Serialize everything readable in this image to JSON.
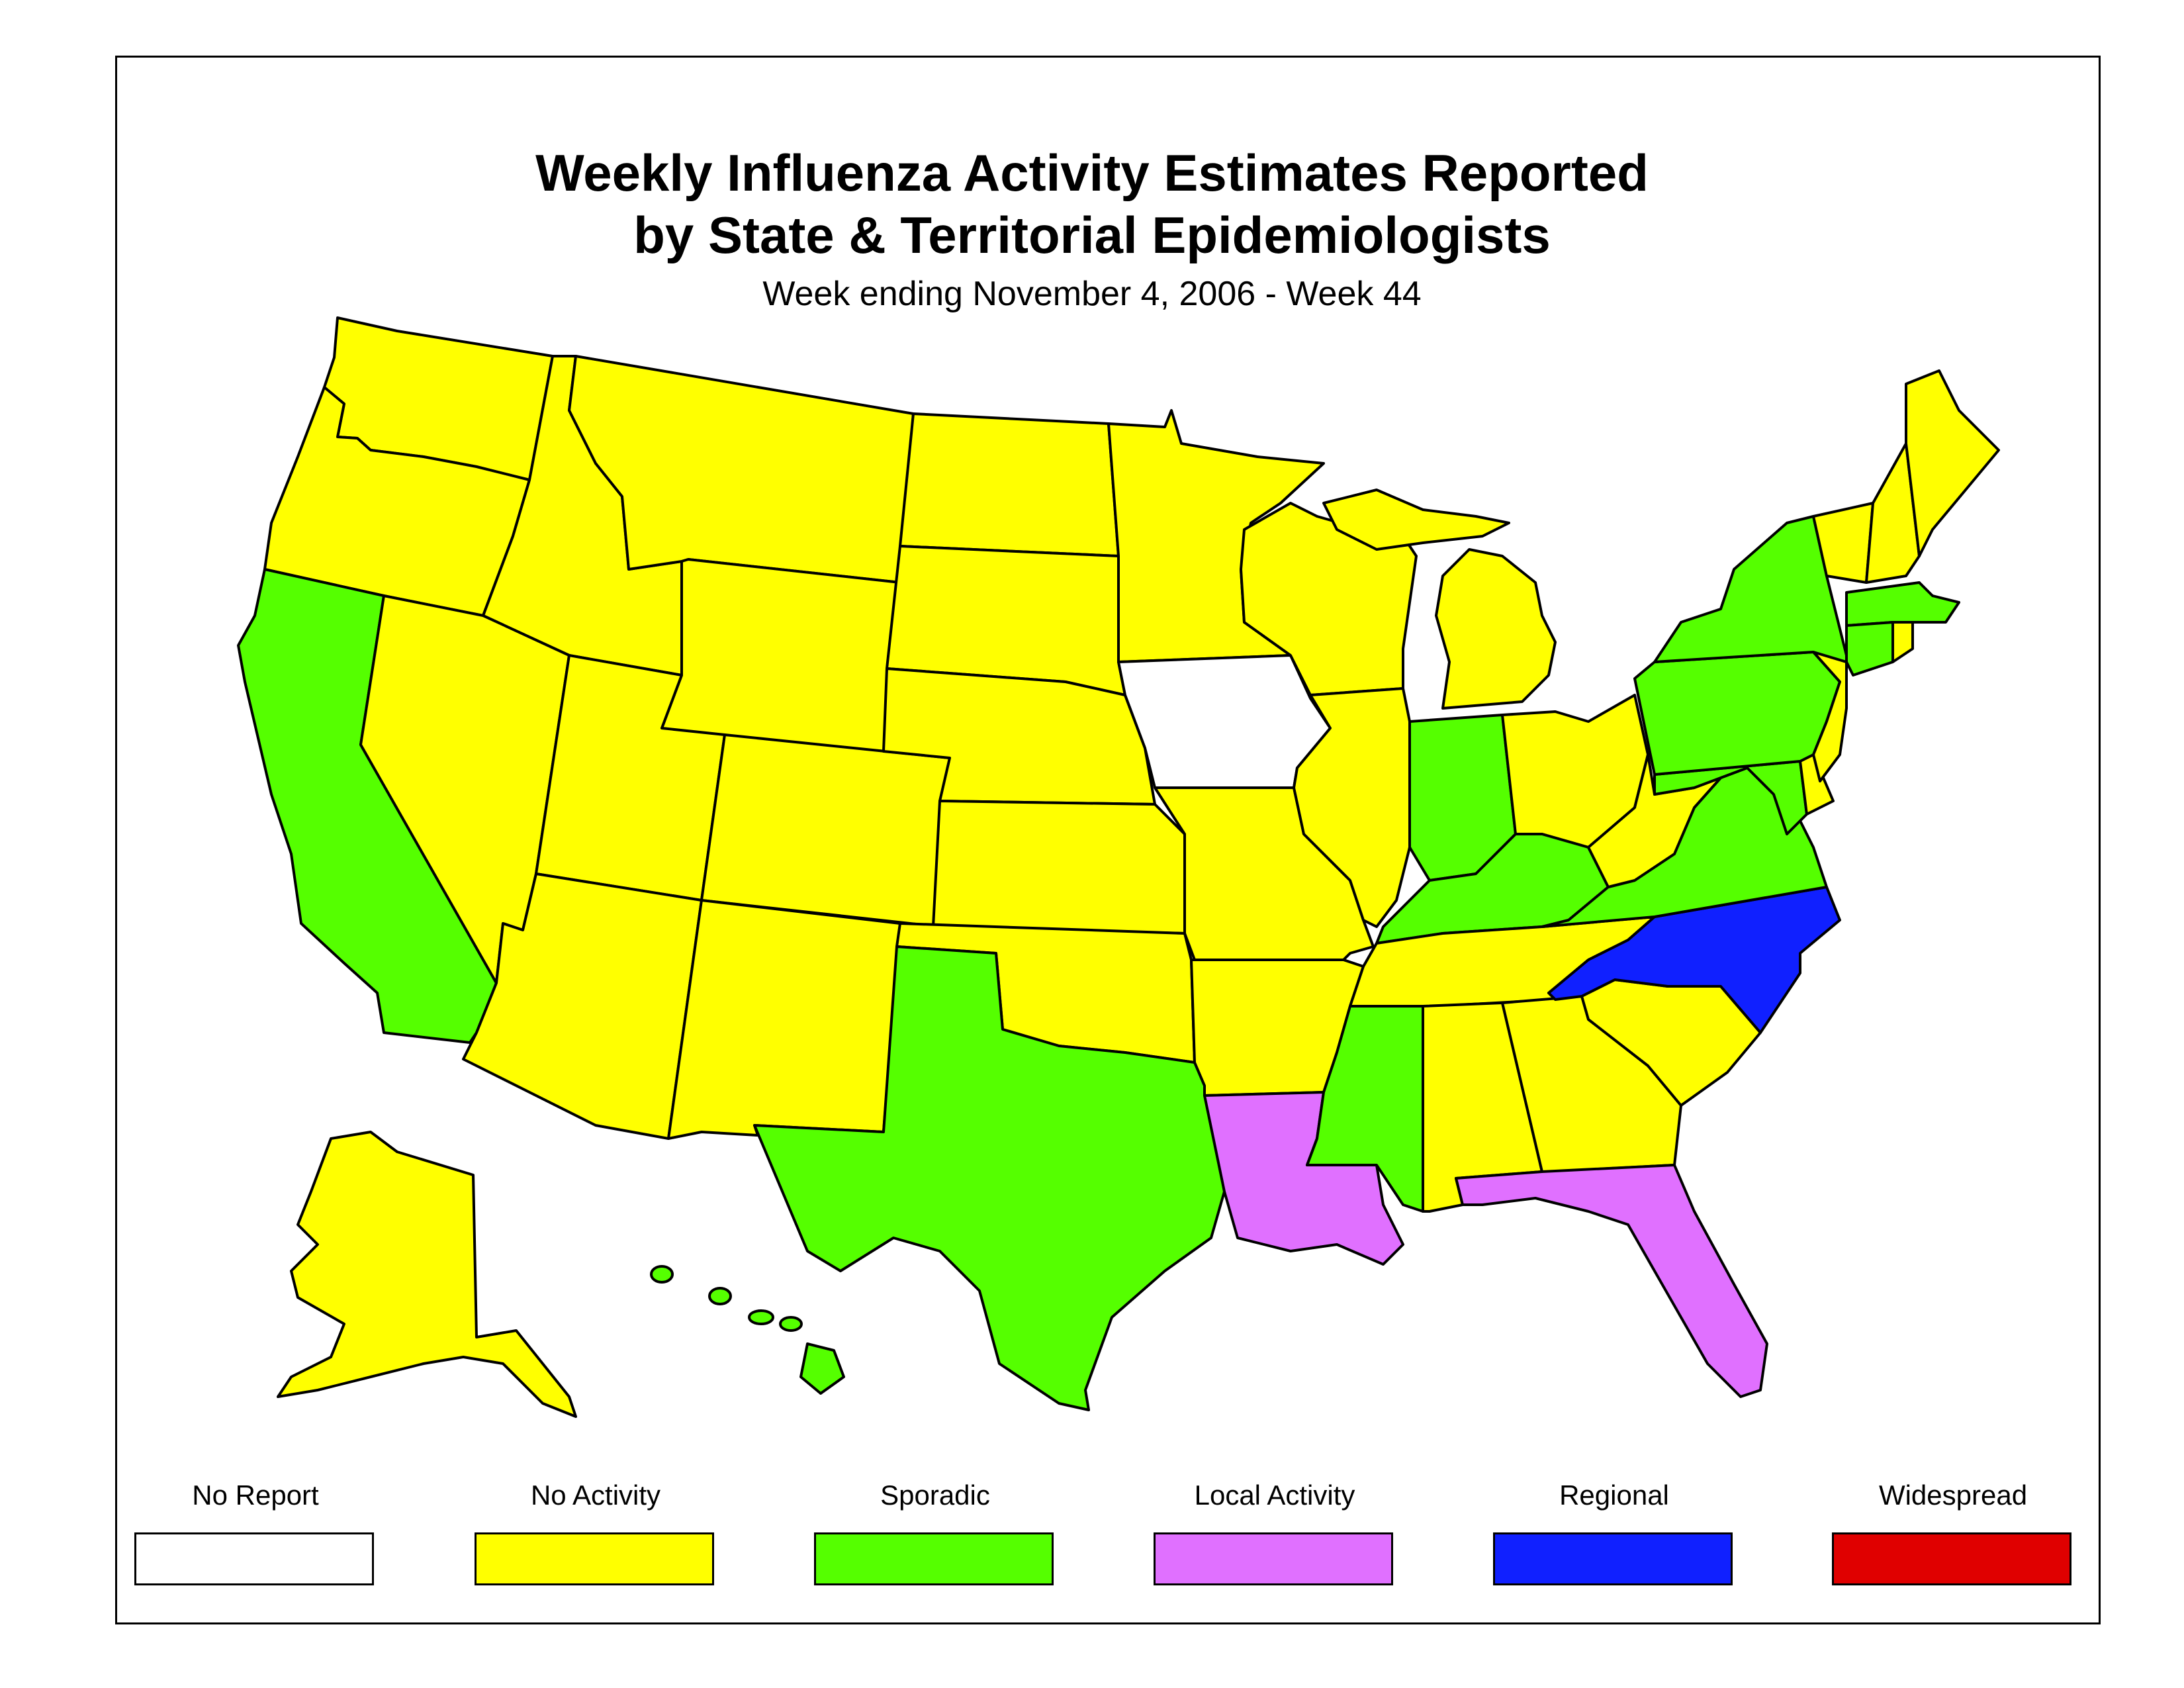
{
  "title_line1": "Weekly Influenza Activity Estimates Reported",
  "title_line2": "by State & Territorial Epidemiologists",
  "subtitle": "Week ending November 4, 2006 - Week 44",
  "legend": [
    {
      "label": "No Report",
      "color": "#ffffff"
    },
    {
      "label": "No Activity",
      "color": "#ffff00"
    },
    {
      "label": "Sporadic",
      "color": "#55ff00"
    },
    {
      "label": "Local Activity",
      "color": "#e070ff"
    },
    {
      "label": "Regional",
      "color": "#1020ff"
    },
    {
      "label": "Widespread",
      "color": "#e00000"
    }
  ],
  "states": [
    {
      "id": "WA",
      "activity": "No Activity"
    },
    {
      "id": "OR",
      "activity": "No Activity"
    },
    {
      "id": "CA",
      "activity": "Sporadic"
    },
    {
      "id": "ID",
      "activity": "No Activity"
    },
    {
      "id": "NV",
      "activity": "No Activity"
    },
    {
      "id": "MT",
      "activity": "No Activity"
    },
    {
      "id": "WY",
      "activity": "No Activity"
    },
    {
      "id": "UT",
      "activity": "No Activity"
    },
    {
      "id": "AZ",
      "activity": "No Activity"
    },
    {
      "id": "CO",
      "activity": "No Activity"
    },
    {
      "id": "NM",
      "activity": "No Activity"
    },
    {
      "id": "ND",
      "activity": "No Activity"
    },
    {
      "id": "SD",
      "activity": "No Activity"
    },
    {
      "id": "NE",
      "activity": "No Activity"
    },
    {
      "id": "KS",
      "activity": "No Activity"
    },
    {
      "id": "OK",
      "activity": "No Activity"
    },
    {
      "id": "TX",
      "activity": "Sporadic"
    },
    {
      "id": "MN",
      "activity": "No Activity"
    },
    {
      "id": "IA",
      "activity": "No Report"
    },
    {
      "id": "MO",
      "activity": "No Activity"
    },
    {
      "id": "AR",
      "activity": "No Activity"
    },
    {
      "id": "LA",
      "activity": "Local Activity"
    },
    {
      "id": "WI",
      "activity": "No Activity"
    },
    {
      "id": "IL",
      "activity": "No Activity"
    },
    {
      "id": "MI",
      "activity": "No Activity"
    },
    {
      "id": "IN",
      "activity": "Sporadic"
    },
    {
      "id": "OH",
      "activity": "No Activity"
    },
    {
      "id": "KY",
      "activity": "Sporadic"
    },
    {
      "id": "TN",
      "activity": "No Activity"
    },
    {
      "id": "MS",
      "activity": "Sporadic"
    },
    {
      "id": "AL",
      "activity": "No Activity"
    },
    {
      "id": "GA",
      "activity": "No Activity"
    },
    {
      "id": "FL",
      "activity": "Local Activity"
    },
    {
      "id": "SC",
      "activity": "No Activity"
    },
    {
      "id": "NC",
      "activity": "Regional"
    },
    {
      "id": "VA",
      "activity": "Sporadic"
    },
    {
      "id": "WV",
      "activity": "No Activity"
    },
    {
      "id": "PA",
      "activity": "Sporadic"
    },
    {
      "id": "NY",
      "activity": "Sporadic"
    },
    {
      "id": "MD",
      "activity": "Sporadic"
    },
    {
      "id": "DE",
      "activity": "No Activity"
    },
    {
      "id": "NJ",
      "activity": "No Activity"
    },
    {
      "id": "CT",
      "activity": "Sporadic"
    },
    {
      "id": "RI",
      "activity": "No Activity"
    },
    {
      "id": "MA",
      "activity": "Sporadic"
    },
    {
      "id": "VT",
      "activity": "No Activity"
    },
    {
      "id": "NH",
      "activity": "No Activity"
    },
    {
      "id": "ME",
      "activity": "No Activity"
    },
    {
      "id": "AK",
      "activity": "No Activity"
    },
    {
      "id": "HI",
      "activity": "Sporadic"
    }
  ]
}
